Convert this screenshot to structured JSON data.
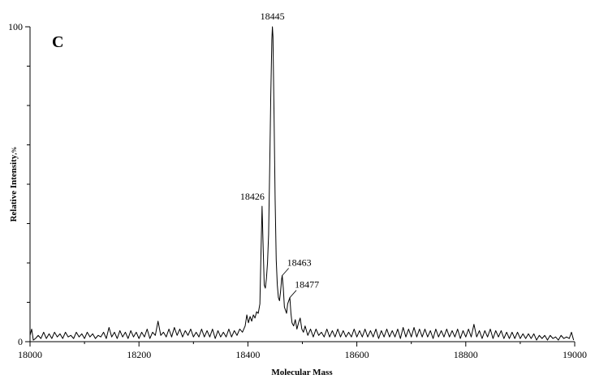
{
  "chart_data": {
    "type": "line",
    "panel_label": "C",
    "xlabel": "Molecular Mass",
    "ylabel": "Relative Intensity",
    "ylabel_unit": ",%",
    "xlim": [
      18000,
      19000
    ],
    "ylim": [
      0,
      100
    ],
    "x_ticks": [
      18000,
      18200,
      18400,
      18600,
      18800,
      19000
    ],
    "y_ticks": [
      0,
      100
    ],
    "grid": false,
    "legend": "none",
    "line_color": "#000000",
    "peak_labels": [
      {
        "x": 18426,
        "y": 43,
        "text": "18426"
      },
      {
        "x": 18445,
        "y": 100,
        "text": "18445"
      },
      {
        "x": 18463,
        "y": 21,
        "text": "18463"
      },
      {
        "x": 18477,
        "y": 14,
        "text": "18477"
      }
    ],
    "series": [
      {
        "points": [
          [
            18000,
            2
          ],
          [
            18003,
            4
          ],
          [
            18006,
            0.5
          ],
          [
            18010,
            1
          ],
          [
            18015,
            2
          ],
          [
            18020,
            1
          ],
          [
            18025,
            3
          ],
          [
            18030,
            1
          ],
          [
            18035,
            2.5
          ],
          [
            18040,
            1
          ],
          [
            18045,
            3
          ],
          [
            18050,
            1.5
          ],
          [
            18055,
            2.5
          ],
          [
            18060,
            1
          ],
          [
            18065,
            3
          ],
          [
            18070,
            1.5
          ],
          [
            18075,
            2
          ],
          [
            18080,
            1
          ],
          [
            18085,
            3
          ],
          [
            18090,
            1.5
          ],
          [
            18095,
            2.5
          ],
          [
            18100,
            1
          ],
          [
            18105,
            3
          ],
          [
            18110,
            1.5
          ],
          [
            18115,
            2.5
          ],
          [
            18120,
            1
          ],
          [
            18125,
            2
          ],
          [
            18130,
            1.5
          ],
          [
            18135,
            3
          ],
          [
            18140,
            1
          ],
          [
            18145,
            4.5
          ],
          [
            18150,
            1.5
          ],
          [
            18155,
            3
          ],
          [
            18160,
            1
          ],
          [
            18165,
            3.5
          ],
          [
            18170,
            1.5
          ],
          [
            18175,
            3
          ],
          [
            18180,
            1
          ],
          [
            18185,
            3.5
          ],
          [
            18190,
            1.5
          ],
          [
            18195,
            3
          ],
          [
            18200,
            1
          ],
          [
            18205,
            3
          ],
          [
            18210,
            1.5
          ],
          [
            18215,
            4
          ],
          [
            18220,
            1
          ],
          [
            18225,
            3
          ],
          [
            18230,
            2
          ],
          [
            18235,
            6.5
          ],
          [
            18240,
            2
          ],
          [
            18245,
            3
          ],
          [
            18250,
            1.5
          ],
          [
            18255,
            4
          ],
          [
            18260,
            1.5
          ],
          [
            18265,
            4.5
          ],
          [
            18270,
            2
          ],
          [
            18275,
            4
          ],
          [
            18280,
            1.5
          ],
          [
            18285,
            3.5
          ],
          [
            18290,
            2
          ],
          [
            18295,
            4
          ],
          [
            18300,
            1.5
          ],
          [
            18305,
            3
          ],
          [
            18310,
            1.5
          ],
          [
            18315,
            4
          ],
          [
            18320,
            1.5
          ],
          [
            18325,
            3.5
          ],
          [
            18330,
            1.5
          ],
          [
            18335,
            4
          ],
          [
            18340,
            1
          ],
          [
            18345,
            3.5
          ],
          [
            18350,
            1.5
          ],
          [
            18355,
            3
          ],
          [
            18360,
            1.5
          ],
          [
            18365,
            4
          ],
          [
            18370,
            1.5
          ],
          [
            18375,
            3.5
          ],
          [
            18380,
            2
          ],
          [
            18385,
            4
          ],
          [
            18390,
            3
          ],
          [
            18395,
            5
          ],
          [
            18398,
            8.5
          ],
          [
            18401,
            6
          ],
          [
            18404,
            8
          ],
          [
            18407,
            6.5
          ],
          [
            18410,
            8.5
          ],
          [
            18413,
            7.5
          ],
          [
            18416,
            9.5
          ],
          [
            18419,
            9
          ],
          [
            18422,
            12
          ],
          [
            18424,
            28
          ],
          [
            18426,
            43
          ],
          [
            18428,
            30
          ],
          [
            18430,
            18
          ],
          [
            18432,
            17
          ],
          [
            18434,
            20
          ],
          [
            18436,
            25
          ],
          [
            18438,
            34
          ],
          [
            18440,
            55
          ],
          [
            18442,
            78
          ],
          [
            18444,
            96
          ],
          [
            18445,
            100
          ],
          [
            18446,
            97
          ],
          [
            18448,
            72
          ],
          [
            18450,
            45
          ],
          [
            18452,
            26
          ],
          [
            18454,
            18
          ],
          [
            18456,
            14
          ],
          [
            18458,
            13
          ],
          [
            18460,
            16
          ],
          [
            18462,
            20
          ],
          [
            18463,
            21
          ],
          [
            18465,
            17
          ],
          [
            18467,
            11
          ],
          [
            18469,
            10
          ],
          [
            18471,
            9
          ],
          [
            18473,
            12
          ],
          [
            18475,
            13
          ],
          [
            18477,
            14
          ],
          [
            18479,
            9
          ],
          [
            18481,
            6
          ],
          [
            18484,
            5
          ],
          [
            18487,
            7
          ],
          [
            18490,
            4
          ],
          [
            18493,
            6
          ],
          [
            18496,
            7.5
          ],
          [
            18499,
            4
          ],
          [
            18502,
            3
          ],
          [
            18505,
            5
          ],
          [
            18510,
            2
          ],
          [
            18515,
            4
          ],
          [
            18520,
            1.5
          ],
          [
            18525,
            4
          ],
          [
            18530,
            2
          ],
          [
            18535,
            3
          ],
          [
            18540,
            1.5
          ],
          [
            18545,
            4
          ],
          [
            18550,
            1.5
          ],
          [
            18555,
            3.5
          ],
          [
            18560,
            1.5
          ],
          [
            18565,
            4
          ],
          [
            18570,
            1.5
          ],
          [
            18575,
            3.5
          ],
          [
            18580,
            1.5
          ],
          [
            18585,
            3
          ],
          [
            18590,
            1.5
          ],
          [
            18595,
            4
          ],
          [
            18600,
            1.5
          ],
          [
            18605,
            3.5
          ],
          [
            18610,
            1.5
          ],
          [
            18615,
            4
          ],
          [
            18620,
            1.5
          ],
          [
            18625,
            3.5
          ],
          [
            18630,
            1.5
          ],
          [
            18635,
            4
          ],
          [
            18640,
            1
          ],
          [
            18645,
            3.5
          ],
          [
            18650,
            1.5
          ],
          [
            18655,
            4
          ],
          [
            18660,
            1.5
          ],
          [
            18665,
            3.5
          ],
          [
            18670,
            1.5
          ],
          [
            18675,
            4
          ],
          [
            18680,
            1
          ],
          [
            18685,
            4.5
          ],
          [
            18690,
            1.5
          ],
          [
            18695,
            4
          ],
          [
            18700,
            1.5
          ],
          [
            18705,
            4.5
          ],
          [
            18710,
            1.5
          ],
          [
            18715,
            4
          ],
          [
            18720,
            1.5
          ],
          [
            18725,
            4
          ],
          [
            18730,
            1.5
          ],
          [
            18735,
            3.5
          ],
          [
            18740,
            1
          ],
          [
            18745,
            4
          ],
          [
            18750,
            1.5
          ],
          [
            18755,
            3.5
          ],
          [
            18760,
            1.5
          ],
          [
            18765,
            4
          ],
          [
            18770,
            1.5
          ],
          [
            18775,
            3.5
          ],
          [
            18780,
            1.5
          ],
          [
            18785,
            4
          ],
          [
            18790,
            1
          ],
          [
            18795,
            3.5
          ],
          [
            18800,
            1.5
          ],
          [
            18805,
            4
          ],
          [
            18810,
            1.5
          ],
          [
            18815,
            5.5
          ],
          [
            18820,
            1.5
          ],
          [
            18825,
            3.5
          ],
          [
            18830,
            1
          ],
          [
            18835,
            3.5
          ],
          [
            18840,
            1.5
          ],
          [
            18845,
            4
          ],
          [
            18850,
            1
          ],
          [
            18855,
            3.5
          ],
          [
            18860,
            1.5
          ],
          [
            18865,
            3.5
          ],
          [
            18870,
            1
          ],
          [
            18875,
            3
          ],
          [
            18880,
            1
          ],
          [
            18885,
            3
          ],
          [
            18890,
            1
          ],
          [
            18895,
            3
          ],
          [
            18900,
            1
          ],
          [
            18905,
            2.5
          ],
          [
            18910,
            1
          ],
          [
            18915,
            2.5
          ],
          [
            18920,
            1
          ],
          [
            18925,
            2.5
          ],
          [
            18930,
            0.5
          ],
          [
            18935,
            2
          ],
          [
            18940,
            1
          ],
          [
            18945,
            2
          ],
          [
            18950,
            0.5
          ],
          [
            18955,
            2
          ],
          [
            18960,
            1
          ],
          [
            18965,
            1.5
          ],
          [
            18970,
            0.5
          ],
          [
            18975,
            2
          ],
          [
            18980,
            1
          ],
          [
            18985,
            1.5
          ],
          [
            18990,
            1
          ],
          [
            18994,
            3
          ],
          [
            18998,
            0.5
          ]
        ]
      }
    ]
  }
}
